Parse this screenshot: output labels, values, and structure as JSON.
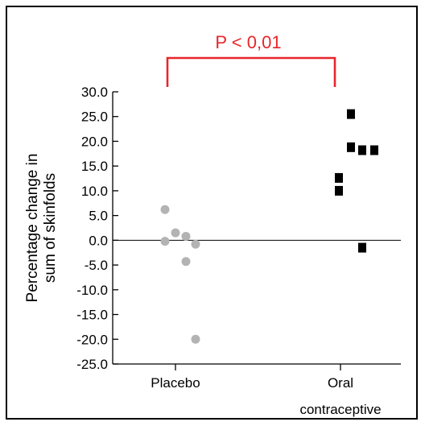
{
  "chart_data": {
    "type": "scatter",
    "categories": [
      "Placebo",
      "Oral contraceptive"
    ],
    "category_lines": [
      [
        "Placebo"
      ],
      [
        "Oral",
        "contraceptive"
      ]
    ],
    "ylabel_lines": [
      "Percentage change in",
      "sum of skinfolds"
    ],
    "ylim": [
      -25,
      30
    ],
    "yticks": [
      30,
      25,
      20,
      15,
      10,
      5,
      0,
      -5,
      -10,
      -15,
      -20,
      -25
    ],
    "ytick_labels": [
      "30.0",
      "25.0",
      "20.0",
      "15.0",
      "10.0",
      "5.0",
      "0.0",
      "-5.0",
      "-10.0",
      "-15.0",
      "-20.0",
      "-25.0"
    ],
    "annotation": "P < 0,01",
    "grid": false,
    "series": [
      {
        "category": "Placebo",
        "marker": "circle",
        "color": "#b3b3b3",
        "points": [
          {
            "x_offset": -0.13,
            "y": 6.2
          },
          {
            "x_offset": -0.13,
            "y": -0.2
          },
          {
            "x_offset": 0.0,
            "y": 1.5
          },
          {
            "x_offset": 0.13,
            "y": 0.8
          },
          {
            "x_offset": 0.25,
            "y": -0.8
          },
          {
            "x_offset": 0.13,
            "y": -4.3
          },
          {
            "x_offset": 0.25,
            "y": -20.0
          }
        ]
      },
      {
        "category": "Oral contraceptive",
        "marker": "square",
        "color": "#000000",
        "points": [
          {
            "x_offset": 0.13,
            "y": 25.5
          },
          {
            "x_offset": 0.13,
            "y": 18.8
          },
          {
            "x_offset": 0.27,
            "y": 18.2
          },
          {
            "x_offset": 0.42,
            "y": 18.2
          },
          {
            "x_offset": -0.02,
            "y": 12.6
          },
          {
            "x_offset": -0.02,
            "y": 10.0
          },
          {
            "x_offset": 0.27,
            "y": -1.5
          }
        ]
      }
    ]
  }
}
